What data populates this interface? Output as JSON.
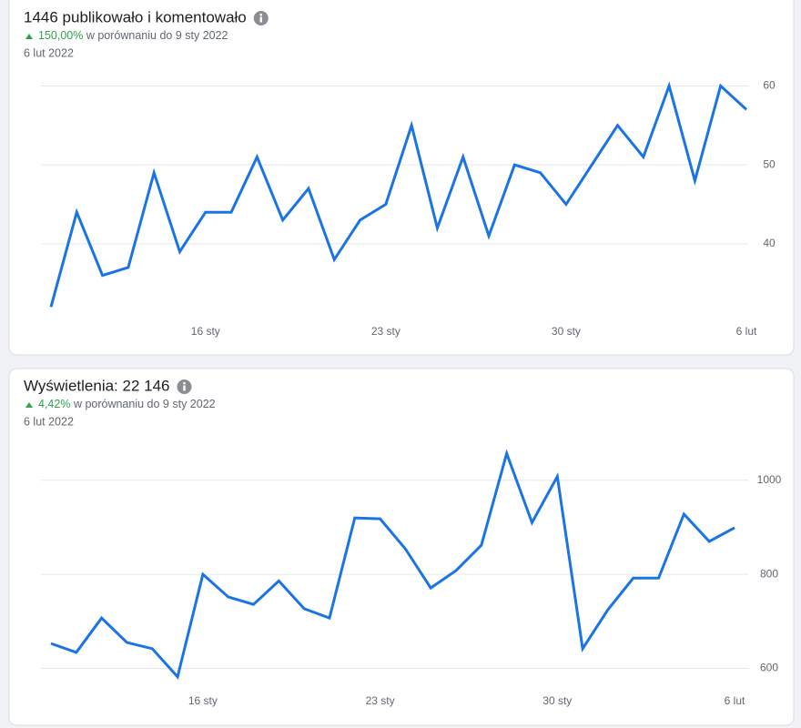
{
  "chart_data": [
    {
      "type": "line",
      "title": "1446 publikowało i komentowało",
      "change": "150,00%",
      "comparison": "w porównaniu do 9 sty 2022",
      "date": "6 lut 2022",
      "categories": [
        null,
        null,
        null,
        null,
        null,
        null,
        "16 sty",
        null,
        null,
        null,
        null,
        null,
        null,
        "23 sty",
        null,
        null,
        null,
        null,
        null,
        null,
        "30 sty",
        null,
        null,
        null,
        null,
        null,
        null,
        "6 lut"
      ],
      "values": [
        32,
        44,
        36,
        37,
        49,
        39,
        44,
        44,
        51,
        43,
        47,
        38,
        43,
        45,
        55,
        42,
        51,
        41,
        50,
        49,
        45,
        50,
        55,
        51,
        60,
        48,
        60,
        57
      ],
      "color": "#1b74e4",
      "ylim": [
        31,
        62
      ],
      "yticks": [
        40,
        50,
        60
      ],
      "grid": true
    },
    {
      "type": "line",
      "title": "Wyświetlenia: 22 146",
      "change": "4,42%",
      "comparison": "w porównaniu do 9 sty 2022",
      "date": "6 lut 2022",
      "categories": [
        null,
        null,
        null,
        null,
        null,
        null,
        "16 sty",
        null,
        null,
        null,
        null,
        null,
        null,
        "23 sty",
        null,
        null,
        null,
        null,
        null,
        null,
        "30 sty",
        null,
        null,
        null,
        null,
        null,
        null,
        "6 lut"
      ],
      "values": [
        653,
        634,
        707,
        655,
        642,
        582,
        800,
        752,
        736,
        786,
        727,
        707,
        920,
        918,
        854,
        771,
        808,
        862,
        1057,
        910,
        1008,
        642,
        725,
        792,
        792,
        928,
        870,
        899
      ],
      "color": "#1b74e4",
      "ylim": [
        570,
        1075
      ],
      "yticks": [
        600,
        800,
        1000
      ],
      "grid": true
    }
  ]
}
